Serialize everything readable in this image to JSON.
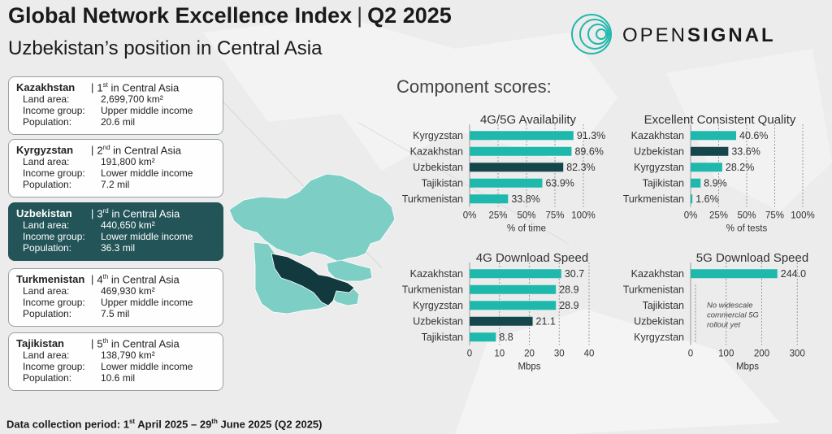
{
  "header": {
    "title": "Global Network Excellence Index",
    "separator": "|",
    "period": "Q2 2025",
    "subtitle": "Uzbekistan’s position in Central Asia"
  },
  "brand": {
    "name_light": "OPEN",
    "name_bold": "SIGNAL",
    "accent_color": "#1fb8ac"
  },
  "colors": {
    "teal": "#1fb8ac",
    "dark_teal": "#14464b",
    "map_teal": "#7dcfc6",
    "map_dark": "#12393d"
  },
  "region_cards": [
    {
      "country": "Kazakhstan",
      "rank": "1",
      "rank_suffix": "st",
      "rank_text": " in Central Asia",
      "land_label": "Land area:",
      "land_value": "2,699,700 km²",
      "income_label": "Income group:",
      "income_value": "Upper middle income",
      "pop_label": "Population:",
      "pop_value": "20.6 mil",
      "highlight": false
    },
    {
      "country": "Kyrgyzstan",
      "rank": "2",
      "rank_suffix": "nd",
      "rank_text": " in Central Asia",
      "land_label": "Land area:",
      "land_value": "191,800 km²",
      "income_label": "Income group:",
      "income_value": "Lower middle income",
      "pop_label": "Population:",
      "pop_value": "7.2 mil",
      "highlight": false
    },
    {
      "country": "Uzbekistan",
      "rank": "3",
      "rank_suffix": "rd",
      "rank_text": " in Central Asia",
      "land_label": "Land area:",
      "land_value": "440,650 km²",
      "income_label": "Income group:",
      "income_value": "Lower middle income",
      "pop_label": "Population:",
      "pop_value": "36.3 mil",
      "highlight": true
    },
    {
      "country": "Turkmenistan",
      "rank": "4",
      "rank_suffix": "th",
      "rank_text": " in Central Asia",
      "land_label": "Land area:",
      "land_value": "469,930 km²",
      "income_label": "Income group:",
      "income_value": "Upper middle income",
      "pop_label": "Population:",
      "pop_value": "7.5 mil",
      "highlight": false
    },
    {
      "country": "Tajikistan",
      "rank": "5",
      "rank_suffix": "th",
      "rank_text": " in Central Asia",
      "land_label": "Land area:",
      "land_value": "138,790 km²",
      "income_label": "Income group:",
      "income_value": "Lower middle income",
      "pop_label": "Population:",
      "pop_value": "10.6 mil",
      "highlight": false
    }
  ],
  "components_title": "Component scores:",
  "chart_data": [
    {
      "type": "bar",
      "orientation": "horizontal",
      "title": "4G/5G Availability",
      "categories": [
        "Kyrgyzstan",
        "Kazakhstan",
        "Uzbekistan",
        "Tajikistan",
        "Turkmenistan"
      ],
      "values": [
        91.3,
        89.6,
        82.3,
        63.9,
        33.8
      ],
      "value_labels": [
        "91.3%",
        "89.6%",
        "82.3%",
        "63.9%",
        "33.8%"
      ],
      "highlight": "Uzbekistan",
      "xlim": [
        0,
        100
      ],
      "ticks": [
        0,
        25,
        50,
        75,
        100
      ],
      "tick_labels": [
        "0%",
        "25%",
        "50%",
        "75%",
        "100%"
      ],
      "xlabel": "% of time",
      "grid": "vertical dashed"
    },
    {
      "type": "bar",
      "orientation": "horizontal",
      "title": "Excellent Consistent Quality",
      "categories": [
        "Kazakhstan",
        "Uzbekistan",
        "Kyrgyzstan",
        "Tajikistan",
        "Turkmenistan"
      ],
      "values": [
        40.6,
        33.6,
        28.2,
        8.9,
        1.6
      ],
      "value_labels": [
        "40.6%",
        "33.6%",
        "28.2%",
        "8.9%",
        "1.6%"
      ],
      "highlight": "Uzbekistan",
      "xlim": [
        0,
        100
      ],
      "ticks": [
        0,
        25,
        50,
        75,
        100
      ],
      "tick_labels": [
        "0%",
        "25%",
        "50%",
        "75%",
        "100%"
      ],
      "xlabel": "% of tests",
      "grid": "vertical dashed"
    },
    {
      "type": "bar",
      "orientation": "horizontal",
      "title": "4G Download Speed",
      "categories": [
        "Kazakhstan",
        "Turkmenistan",
        "Kyrgyzstan",
        "Uzbekistan",
        "Tajikistan"
      ],
      "values": [
        30.7,
        28.9,
        28.9,
        21.1,
        8.8
      ],
      "value_labels": [
        "30.7",
        "28.9",
        "28.9",
        "21.1",
        "8.8"
      ],
      "highlight": "Uzbekistan",
      "xlim": [
        0,
        40
      ],
      "ticks": [
        0,
        10,
        20,
        30,
        40
      ],
      "tick_labels": [
        "0",
        "10",
        "20",
        "30",
        "40"
      ],
      "xlabel": "Mbps",
      "grid": "vertical dashed"
    },
    {
      "type": "bar",
      "orientation": "horizontal",
      "title": "5G Download Speed",
      "categories": [
        "Kazakhstan",
        "Turkmenistan",
        "Tajikistan",
        "Uzbekistan",
        "Kyrgyzstan"
      ],
      "values": [
        244.0,
        null,
        null,
        null,
        null
      ],
      "value_labels": [
        "244.0",
        "",
        "",
        "",
        ""
      ],
      "highlight": "Uzbekistan",
      "xlim": [
        0,
        320
      ],
      "ticks": [
        0,
        100,
        200,
        300
      ],
      "tick_labels": [
        "0",
        "100",
        "200",
        "300"
      ],
      "xlabel": "Mbps",
      "grid": "vertical dashed",
      "annotation": [
        "No widescale",
        "commercial 5G",
        "rollout yet"
      ]
    }
  ],
  "footer": {
    "prefix": "Data collection period: 1",
    "sup1": "st",
    "mid": " April 2025 – 29",
    "sup2": "th",
    "suffix": " June 2025 (Q2 2025)"
  }
}
